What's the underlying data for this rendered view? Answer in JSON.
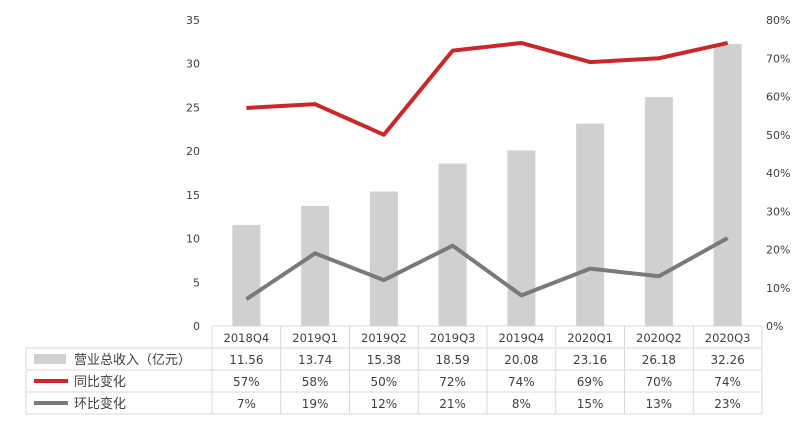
{
  "chart_data": {
    "type": "bar",
    "categories": [
      "2018Q4",
      "2019Q1",
      "2019Q2",
      "2019Q3",
      "2019Q4",
      "2020Q1",
      "2020Q2",
      "2020Q3"
    ],
    "left_axis": {
      "ticks": [
        "0",
        "5",
        "10",
        "15",
        "20",
        "25",
        "30",
        "35"
      ],
      "ylim": [
        0,
        35
      ]
    },
    "right_axis": {
      "ticks": [
        "0%",
        "10%",
        "20%",
        "30%",
        "40%",
        "50%",
        "60%",
        "70%",
        "80%"
      ],
      "ylim": [
        0,
        0.8
      ]
    },
    "series": [
      {
        "name": "营业总收入（亿元）",
        "kind": "bar",
        "axis": "left",
        "color": "#d0d0d0",
        "values": [
          11.56,
          13.74,
          15.38,
          18.59,
          20.08,
          23.16,
          26.18,
          32.26
        ],
        "labels": [
          "11.56",
          "13.74",
          "15.38",
          "18.59",
          "20.08",
          "23.16",
          "26.18",
          "32.26"
        ]
      },
      {
        "name": "同比变化",
        "kind": "line",
        "axis": "right",
        "color": "#c8282a",
        "values": [
          0.57,
          0.58,
          0.5,
          0.72,
          0.74,
          0.69,
          0.7,
          0.74
        ],
        "labels": [
          "57%",
          "58%",
          "50%",
          "72%",
          "74%",
          "69%",
          "70%",
          "74%"
        ]
      },
      {
        "name": "环比变化",
        "kind": "line",
        "axis": "right",
        "color": "#7a7a7a",
        "values": [
          0.07,
          0.19,
          0.12,
          0.21,
          0.08,
          0.15,
          0.13,
          0.23
        ],
        "labels": [
          "7%",
          "19%",
          "12%",
          "21%",
          "8%",
          "15%",
          "13%",
          "23%"
        ]
      }
    ],
    "grid": false,
    "legend": "data-table-below"
  }
}
